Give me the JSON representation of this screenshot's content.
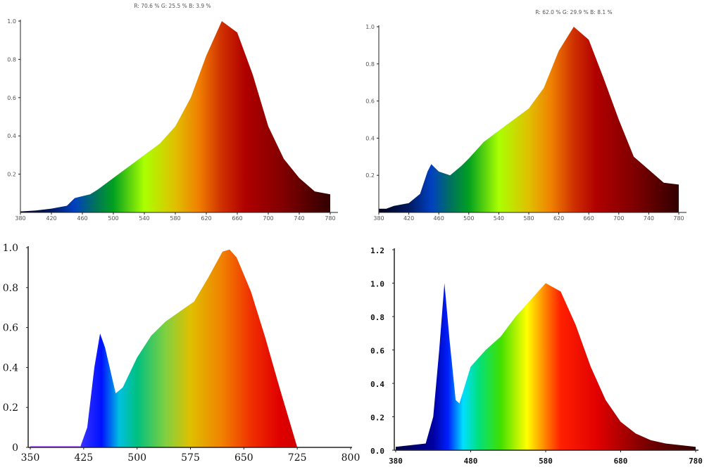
{
  "chart_data": [
    {
      "type": "area",
      "title": "R: 70.6 %  G: 25.5 %  B: 3.9 %",
      "xlim": [
        380,
        780
      ],
      "ylim": [
        0,
        1.0
      ],
      "xticks": [
        380,
        420,
        460,
        500,
        540,
        580,
        620,
        660,
        700,
        740,
        780
      ],
      "yticks": [
        0.2,
        0.4,
        0.6,
        0.8,
        1.0
      ],
      "ytick_labels": [
        "0.2",
        "0.4",
        "0.6",
        "0.8",
        "1.0"
      ],
      "x": [
        380,
        400,
        420,
        440,
        450,
        460,
        470,
        480,
        500,
        520,
        540,
        560,
        580,
        600,
        620,
        640,
        660,
        680,
        700,
        720,
        740,
        760,
        780
      ],
      "y": [
        0.005,
        0.01,
        0.02,
        0.035,
        0.075,
        0.085,
        0.095,
        0.12,
        0.18,
        0.24,
        0.3,
        0.36,
        0.45,
        0.6,
        0.82,
        1.0,
        0.94,
        0.72,
        0.45,
        0.28,
        0.18,
        0.11,
        0.095
      ],
      "gradient": [
        [
          380,
          "#00001a"
        ],
        [
          420,
          "#001a60"
        ],
        [
          450,
          "#0040c0"
        ],
        [
          475,
          "#007060"
        ],
        [
          500,
          "#00a020"
        ],
        [
          540,
          "#aaff00"
        ],
        [
          580,
          "#e0c000"
        ],
        [
          610,
          "#f08000"
        ],
        [
          640,
          "#d03000"
        ],
        [
          670,
          "#b00000"
        ],
        [
          720,
          "#800000"
        ],
        [
          780,
          "#300000"
        ]
      ]
    },
    {
      "type": "area",
      "title": "R: 62.0 %  G: 29.9 %  B: 8.1 %",
      "xlim": [
        380,
        780
      ],
      "ylim": [
        0,
        1.0
      ],
      "xticks": [
        380,
        420,
        460,
        500,
        540,
        580,
        620,
        660,
        700,
        740,
        780
      ],
      "yticks": [
        0.2,
        0.4,
        0.6,
        0.8,
        1.0
      ],
      "ytick_labels": [
        "0.2",
        "0.4",
        "0.6",
        "0.8",
        "1.0"
      ],
      "x": [
        380,
        390,
        400,
        420,
        435,
        445,
        450,
        460,
        475,
        490,
        500,
        520,
        540,
        560,
        580,
        600,
        620,
        640,
        660,
        680,
        700,
        720,
        740,
        760,
        780
      ],
      "y": [
        0.02,
        0.02,
        0.035,
        0.05,
        0.1,
        0.22,
        0.26,
        0.22,
        0.2,
        0.25,
        0.29,
        0.38,
        0.44,
        0.5,
        0.56,
        0.67,
        0.87,
        1.0,
        0.93,
        0.72,
        0.5,
        0.3,
        0.23,
        0.16,
        0.15
      ],
      "gradient": [
        [
          380,
          "#00001a"
        ],
        [
          420,
          "#001a60"
        ],
        [
          450,
          "#0040c0"
        ],
        [
          475,
          "#007060"
        ],
        [
          500,
          "#00a020"
        ],
        [
          540,
          "#aaff00"
        ],
        [
          580,
          "#e0c000"
        ],
        [
          610,
          "#f08000"
        ],
        [
          640,
          "#d03000"
        ],
        [
          670,
          "#b00000"
        ],
        [
          720,
          "#800000"
        ],
        [
          780,
          "#300000"
        ]
      ]
    },
    {
      "type": "area",
      "title": "",
      "xlim": [
        350,
        800
      ],
      "ylim": [
        0,
        1.0
      ],
      "xticks": [
        350,
        425,
        500,
        575,
        650,
        725,
        800
      ],
      "yticks": [
        0,
        0.2,
        0.4,
        0.6,
        0.8,
        1.0
      ],
      "ytick_labels": [
        "0",
        "0.2",
        "0.4",
        "0.6",
        "0.8",
        "1.0"
      ],
      "x": [
        350,
        420,
        430,
        440,
        448,
        455,
        470,
        480,
        500,
        520,
        540,
        560,
        580,
        600,
        620,
        630,
        640,
        660,
        680,
        700,
        715,
        725
      ],
      "y": [
        0,
        0,
        0.1,
        0.4,
        0.57,
        0.5,
        0.27,
        0.3,
        0.45,
        0.56,
        0.63,
        0.68,
        0.73,
        0.85,
        0.98,
        0.99,
        0.95,
        0.78,
        0.55,
        0.3,
        0.12,
        0
      ],
      "baseline_color": "#c080ff",
      "gradient": [
        [
          350,
          "#ff80ff"
        ],
        [
          425,
          "#3030ff"
        ],
        [
          450,
          "#0010ff"
        ],
        [
          475,
          "#00c0e0"
        ],
        [
          500,
          "#00c080"
        ],
        [
          540,
          "#80d040"
        ],
        [
          575,
          "#e0c000"
        ],
        [
          620,
          "#f08000"
        ],
        [
          660,
          "#f03000"
        ],
        [
          700,
          "#e00000"
        ],
        [
          725,
          "#d00000"
        ],
        [
          800,
          "#d00000"
        ]
      ]
    },
    {
      "type": "area",
      "title": "",
      "xlim": [
        380,
        780
      ],
      "ylim": [
        0,
        1.2
      ],
      "xticks": [
        380,
        480,
        580,
        680,
        780
      ],
      "yticks": [
        0,
        0.2,
        0.4,
        0.6,
        0.8,
        1.0,
        1.2
      ],
      "ytick_labels": [
        "0.0",
        "0.2",
        "0.4",
        "0.6",
        "0.8",
        "1.0",
        "1.2"
      ],
      "x": [
        380,
        420,
        430,
        438,
        445,
        452,
        460,
        465,
        480,
        500,
        520,
        540,
        560,
        580,
        600,
        620,
        640,
        660,
        680,
        700,
        720,
        740,
        780
      ],
      "y": [
        0.02,
        0.04,
        0.2,
        0.6,
        1.0,
        0.65,
        0.3,
        0.28,
        0.5,
        0.6,
        0.68,
        0.8,
        0.9,
        1.0,
        0.95,
        0.75,
        0.5,
        0.3,
        0.17,
        0.1,
        0.06,
        0.04,
        0.02
      ],
      "gradient": [
        [
          380,
          "#000040"
        ],
        [
          430,
          "#0000a0"
        ],
        [
          450,
          "#0020ff"
        ],
        [
          470,
          "#00e0ff"
        ],
        [
          490,
          "#00e080"
        ],
        [
          520,
          "#40e000"
        ],
        [
          555,
          "#ffff00"
        ],
        [
          580,
          "#ff8000"
        ],
        [
          600,
          "#ff2000"
        ],
        [
          650,
          "#e00000"
        ],
        [
          720,
          "#700000"
        ],
        [
          780,
          "#300000"
        ]
      ]
    }
  ]
}
